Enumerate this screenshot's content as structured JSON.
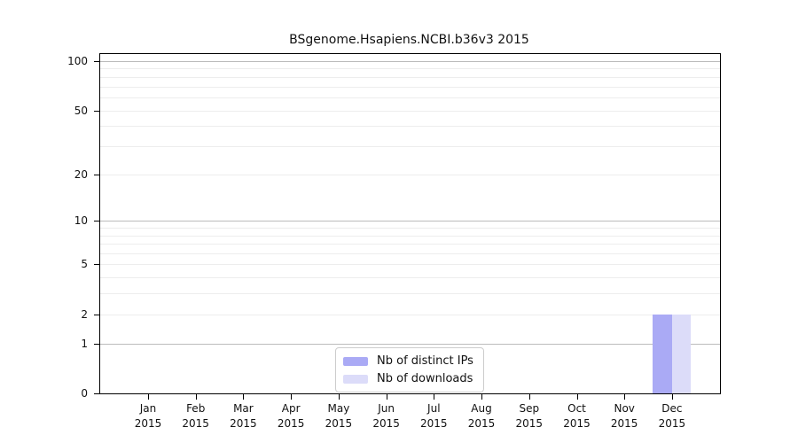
{
  "chart_data": {
    "type": "bar",
    "title": "BSgenome.Hsapiens.NCBI.b36v3 2015",
    "categories": [
      {
        "month": "Jan",
        "year": "2015"
      },
      {
        "month": "Feb",
        "year": "2015"
      },
      {
        "month": "Mar",
        "year": "2015"
      },
      {
        "month": "Apr",
        "year": "2015"
      },
      {
        "month": "May",
        "year": "2015"
      },
      {
        "month": "Jun",
        "year": "2015"
      },
      {
        "month": "Jul",
        "year": "2015"
      },
      {
        "month": "Aug",
        "year": "2015"
      },
      {
        "month": "Sep",
        "year": "2015"
      },
      {
        "month": "Oct",
        "year": "2015"
      },
      {
        "month": "Nov",
        "year": "2015"
      },
      {
        "month": "Dec",
        "year": "2015"
      }
    ],
    "series": [
      {
        "name": "Nb of distinct IPs",
        "color": "#aaaaf5",
        "values": [
          0,
          0,
          0,
          0,
          0,
          0,
          0,
          0,
          0,
          0,
          0,
          2
        ]
      },
      {
        "name": "Nb of downloads",
        "color": "#dcdcf9",
        "values": [
          0,
          0,
          0,
          0,
          0,
          0,
          0,
          0,
          0,
          0,
          0,
          2
        ]
      }
    ],
    "yscale": "log1p",
    "ylim": [
      0,
      100
    ],
    "yticks": [
      0,
      1,
      2,
      5,
      10,
      20,
      50,
      100
    ],
    "gridlines": {
      "major": [
        1,
        10,
        100
      ],
      "minor": [
        2,
        3,
        4,
        5,
        6,
        7,
        8,
        9,
        20,
        30,
        40,
        50,
        60,
        70,
        80,
        90
      ]
    },
    "legend_position": "bottom-center",
    "colors": {
      "axis": "#000000",
      "grid_major": "#bbbbbb",
      "grid_minor": "#ededed",
      "legend_border": "#cccccc",
      "background": "#ffffff"
    }
  }
}
